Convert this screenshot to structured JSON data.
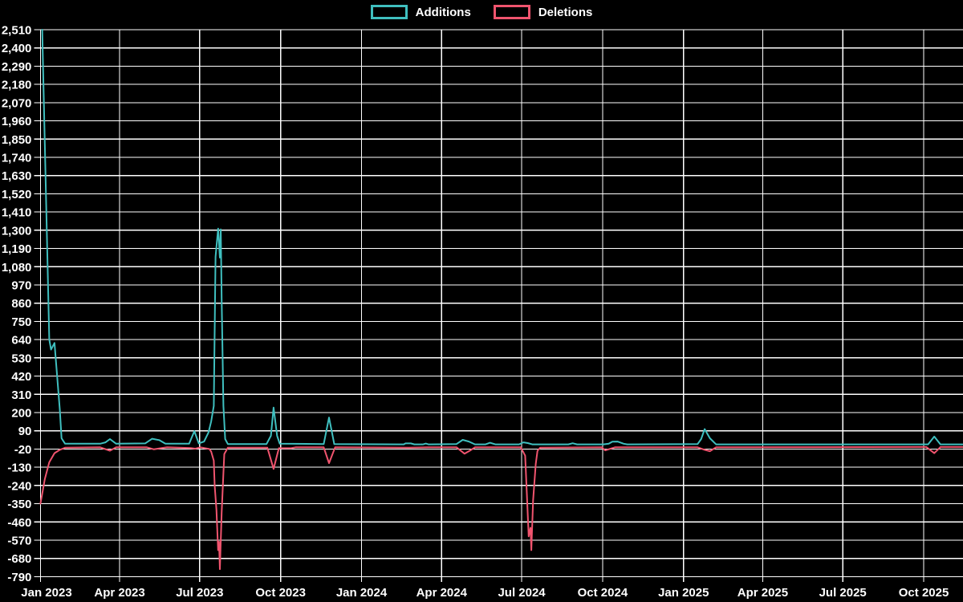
{
  "page": {
    "background_color": "#000000",
    "grid_color": "#ffffff",
    "text_color": "#ffffff"
  },
  "legend": {
    "position": "top",
    "items": [
      {
        "label": "Additions",
        "color": "#3fbfbf"
      },
      {
        "label": "Deletions",
        "color": "#f0546e"
      }
    ]
  },
  "chart_data": {
    "type": "line",
    "title": "",
    "xlabel": "",
    "ylabel": "",
    "grid": true,
    "legend_position": "top",
    "y_axis": {
      "min": -790,
      "max": 2510,
      "tick_step": 110,
      "ticks": [
        2510,
        2400,
        2290,
        2180,
        2070,
        1960,
        1850,
        1740,
        1630,
        1520,
        1410,
        1300,
        1190,
        1080,
        970,
        860,
        750,
        640,
        530,
        420,
        310,
        200,
        90,
        -20,
        -130,
        -240,
        -350,
        -460,
        -570,
        -680,
        -790
      ]
    },
    "x_axis": {
      "start_date": "2023-01-01",
      "end_date": "2025-11-15",
      "ticks": [
        {
          "label": "Jan 2023",
          "date": "2023-01-01"
        },
        {
          "label": "Apr 2023",
          "date": "2023-04-01"
        },
        {
          "label": "Jul 2023",
          "date": "2023-07-01"
        },
        {
          "label": "Oct 2023",
          "date": "2023-10-01"
        },
        {
          "label": "Jan 2024",
          "date": "2024-01-01"
        },
        {
          "label": "Apr 2024",
          "date": "2024-04-01"
        },
        {
          "label": "Jul 2024",
          "date": "2024-07-01"
        },
        {
          "label": "Oct 2024",
          "date": "2024-10-01"
        },
        {
          "label": "Jan 2025",
          "date": "2025-01-01"
        },
        {
          "label": "Apr 2025",
          "date": "2025-04-01"
        },
        {
          "label": "Jul 2025",
          "date": "2025-07-01"
        },
        {
          "label": "Oct 2025",
          "date": "2025-10-01"
        }
      ]
    },
    "series": [
      {
        "name": "Additions",
        "color": "#3fbfbf",
        "points": [
          {
            "date": "2023-01-03",
            "value": 2510
          },
          {
            "date": "2023-01-11",
            "value": 640
          },
          {
            "date": "2023-01-13",
            "value": 580
          },
          {
            "date": "2023-01-17",
            "value": 620
          },
          {
            "date": "2023-01-23",
            "value": 220
          },
          {
            "date": "2023-01-25",
            "value": 45
          },
          {
            "date": "2023-01-29",
            "value": 12
          },
          {
            "date": "2023-03-10",
            "value": 12
          },
          {
            "date": "2023-03-16",
            "value": 20
          },
          {
            "date": "2023-03-21",
            "value": 40
          },
          {
            "date": "2023-03-28",
            "value": 12
          },
          {
            "date": "2023-04-30",
            "value": 14
          },
          {
            "date": "2023-05-08",
            "value": 42
          },
          {
            "date": "2023-05-16",
            "value": 34
          },
          {
            "date": "2023-05-23",
            "value": 12
          },
          {
            "date": "2023-06-19",
            "value": 12
          },
          {
            "date": "2023-06-25",
            "value": 88
          },
          {
            "date": "2023-06-30",
            "value": 14
          },
          {
            "date": "2023-07-06",
            "value": 25
          },
          {
            "date": "2023-07-11",
            "value": 80
          },
          {
            "date": "2023-07-14",
            "value": 145
          },
          {
            "date": "2023-07-17",
            "value": 240
          },
          {
            "date": "2023-07-19",
            "value": 1140
          },
          {
            "date": "2023-07-22",
            "value": 1310
          },
          {
            "date": "2023-07-24",
            "value": 1135
          },
          {
            "date": "2023-07-25",
            "value": 1305
          },
          {
            "date": "2023-07-26",
            "value": 885
          },
          {
            "date": "2023-07-28",
            "value": 240
          },
          {
            "date": "2023-07-30",
            "value": 40
          },
          {
            "date": "2023-08-02",
            "value": 10
          },
          {
            "date": "2023-09-15",
            "value": 10
          },
          {
            "date": "2023-09-20",
            "value": 60
          },
          {
            "date": "2023-09-23",
            "value": 230
          },
          {
            "date": "2023-09-27",
            "value": 60
          },
          {
            "date": "2023-09-30",
            "value": 12
          },
          {
            "date": "2023-11-19",
            "value": 10
          },
          {
            "date": "2023-11-25",
            "value": 170
          },
          {
            "date": "2023-12-01",
            "value": 10
          },
          {
            "date": "2024-02-18",
            "value": 8
          },
          {
            "date": "2024-02-20",
            "value": 14
          },
          {
            "date": "2024-02-26",
            "value": 14
          },
          {
            "date": "2024-03-01",
            "value": 8
          },
          {
            "date": "2024-03-11",
            "value": 8
          },
          {
            "date": "2024-03-14",
            "value": 13
          },
          {
            "date": "2024-03-17",
            "value": 8
          },
          {
            "date": "2024-04-18",
            "value": 10
          },
          {
            "date": "2024-04-25",
            "value": 35
          },
          {
            "date": "2024-05-02",
            "value": 25
          },
          {
            "date": "2024-05-09",
            "value": 8
          },
          {
            "date": "2024-05-21",
            "value": 8
          },
          {
            "date": "2024-05-26",
            "value": 18
          },
          {
            "date": "2024-06-01",
            "value": 8
          },
          {
            "date": "2024-06-28",
            "value": 8
          },
          {
            "date": "2024-07-03",
            "value": 20
          },
          {
            "date": "2024-07-08",
            "value": 16
          },
          {
            "date": "2024-07-13",
            "value": 8
          },
          {
            "date": "2024-08-23",
            "value": 8
          },
          {
            "date": "2024-08-28",
            "value": 15
          },
          {
            "date": "2024-09-02",
            "value": 8
          },
          {
            "date": "2024-10-02",
            "value": 8
          },
          {
            "date": "2024-10-08",
            "value": 12
          },
          {
            "date": "2024-10-12",
            "value": 24
          },
          {
            "date": "2024-10-18",
            "value": 25
          },
          {
            "date": "2024-10-25",
            "value": 12
          },
          {
            "date": "2024-10-29",
            "value": 8
          },
          {
            "date": "2025-01-17",
            "value": 10
          },
          {
            "date": "2025-01-21",
            "value": 40
          },
          {
            "date": "2025-01-25",
            "value": 100
          },
          {
            "date": "2025-01-31",
            "value": 45
          },
          {
            "date": "2025-02-07",
            "value": 8
          },
          {
            "date": "2025-10-06",
            "value": 8
          },
          {
            "date": "2025-10-13",
            "value": 55
          },
          {
            "date": "2025-10-20",
            "value": 8
          },
          {
            "date": "2025-11-14",
            "value": 8
          }
        ]
      },
      {
        "name": "Deletions",
        "color": "#f0546e",
        "points": [
          {
            "date": "2023-01-01",
            "value": -350
          },
          {
            "date": "2023-01-06",
            "value": -200
          },
          {
            "date": "2023-01-11",
            "value": -100
          },
          {
            "date": "2023-01-17",
            "value": -45
          },
          {
            "date": "2023-01-23",
            "value": -25
          },
          {
            "date": "2023-01-29",
            "value": -12
          },
          {
            "date": "2023-03-10",
            "value": -10
          },
          {
            "date": "2023-03-21",
            "value": -30
          },
          {
            "date": "2023-03-28",
            "value": -10
          },
          {
            "date": "2023-05-02",
            "value": -10
          },
          {
            "date": "2023-05-10",
            "value": -22
          },
          {
            "date": "2023-05-18",
            "value": -15
          },
          {
            "date": "2023-05-25",
            "value": -10
          },
          {
            "date": "2023-06-21",
            "value": -14
          },
          {
            "date": "2023-06-26",
            "value": -18
          },
          {
            "date": "2023-07-02",
            "value": -10
          },
          {
            "date": "2023-07-12",
            "value": -20
          },
          {
            "date": "2023-07-14",
            "value": -35
          },
          {
            "date": "2023-07-17",
            "value": -90
          },
          {
            "date": "2023-07-18",
            "value": -240
          },
          {
            "date": "2023-07-20",
            "value": -385
          },
          {
            "date": "2023-07-22",
            "value": -630
          },
          {
            "date": "2023-07-23",
            "value": -580
          },
          {
            "date": "2023-07-24",
            "value": -745
          },
          {
            "date": "2023-07-26",
            "value": -405
          },
          {
            "date": "2023-07-28",
            "value": -165
          },
          {
            "date": "2023-07-29",
            "value": -50
          },
          {
            "date": "2023-08-02",
            "value": -12
          },
          {
            "date": "2023-09-16",
            "value": -12
          },
          {
            "date": "2023-09-23",
            "value": -140
          },
          {
            "date": "2023-09-29",
            "value": -15
          },
          {
            "date": "2023-10-13",
            "value": -15
          },
          {
            "date": "2023-10-18",
            "value": -10
          },
          {
            "date": "2023-11-19",
            "value": -10
          },
          {
            "date": "2023-11-25",
            "value": -105
          },
          {
            "date": "2023-12-02",
            "value": -10
          },
          {
            "date": "2024-02-24",
            "value": -12
          },
          {
            "date": "2024-03-17",
            "value": -10
          },
          {
            "date": "2024-04-18",
            "value": -10
          },
          {
            "date": "2024-04-27",
            "value": -48
          },
          {
            "date": "2024-05-03",
            "value": -30
          },
          {
            "date": "2024-05-09",
            "value": -10
          },
          {
            "date": "2024-06-30",
            "value": -10
          },
          {
            "date": "2024-07-05",
            "value": -60
          },
          {
            "date": "2024-07-07",
            "value": -300
          },
          {
            "date": "2024-07-09",
            "value": -547
          },
          {
            "date": "2024-07-11",
            "value": -495
          },
          {
            "date": "2024-07-12",
            "value": -630
          },
          {
            "date": "2024-07-14",
            "value": -330
          },
          {
            "date": "2024-07-17",
            "value": -110
          },
          {
            "date": "2024-07-19",
            "value": -30
          },
          {
            "date": "2024-07-22",
            "value": -12
          },
          {
            "date": "2024-09-30",
            "value": -10
          },
          {
            "date": "2024-10-04",
            "value": -28
          },
          {
            "date": "2024-10-10",
            "value": -18
          },
          {
            "date": "2024-10-15",
            "value": -10
          },
          {
            "date": "2025-01-17",
            "value": -10
          },
          {
            "date": "2025-01-25",
            "value": -25
          },
          {
            "date": "2025-01-31",
            "value": -33
          },
          {
            "date": "2025-02-07",
            "value": -10
          },
          {
            "date": "2025-10-04",
            "value": -8
          },
          {
            "date": "2025-10-13",
            "value": -45
          },
          {
            "date": "2025-10-20",
            "value": -8
          },
          {
            "date": "2025-11-14",
            "value": -8
          }
        ]
      }
    ]
  }
}
